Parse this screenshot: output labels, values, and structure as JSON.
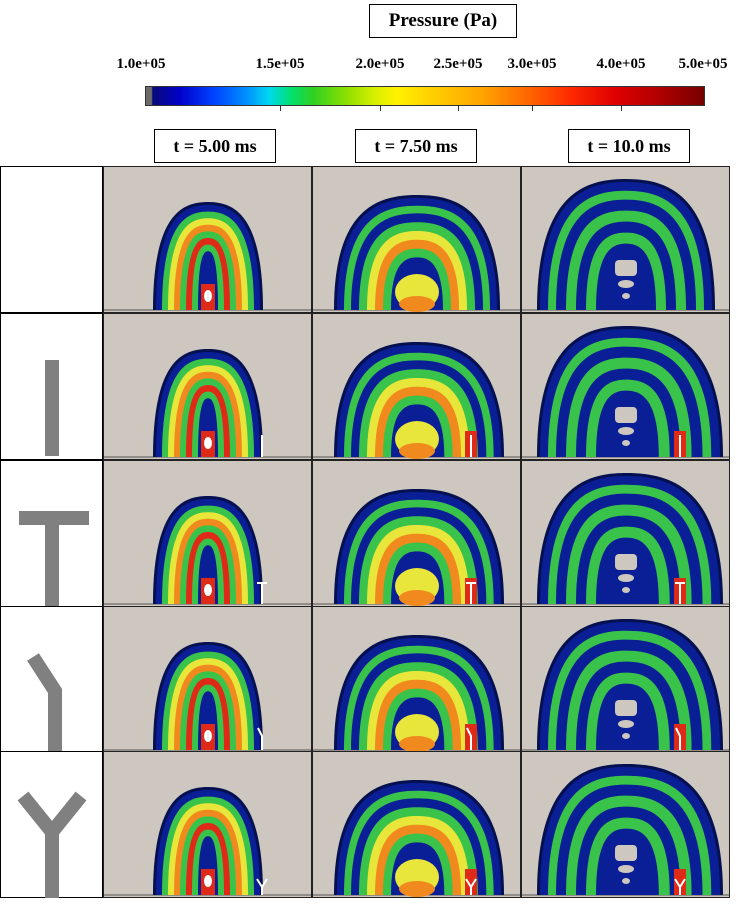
{
  "colorbar": {
    "title": "Pressure (Pa)",
    "ticks": [
      "1.0e+05",
      "1.5e+05",
      "2.0e+05",
      "2.5e+05",
      "3.0e+05",
      "4.0e+05",
      "5.0e+05"
    ]
  },
  "columns": [
    "t = 5.00 ms",
    "t = 7.50 ms",
    "t = 10.0 ms"
  ],
  "rows": [
    {
      "shape": "none"
    },
    {
      "shape": "I"
    },
    {
      "shape": "T"
    },
    {
      "shape": "bent"
    },
    {
      "shape": "Y"
    }
  ],
  "colors": {
    "background": "#cdc7bf",
    "obstacle": "#808080",
    "blue": "#0a1e96",
    "green": "#39c34a",
    "yellow": "#e8e63a",
    "orange": "#f08a1e",
    "red": "#e02a18"
  }
}
